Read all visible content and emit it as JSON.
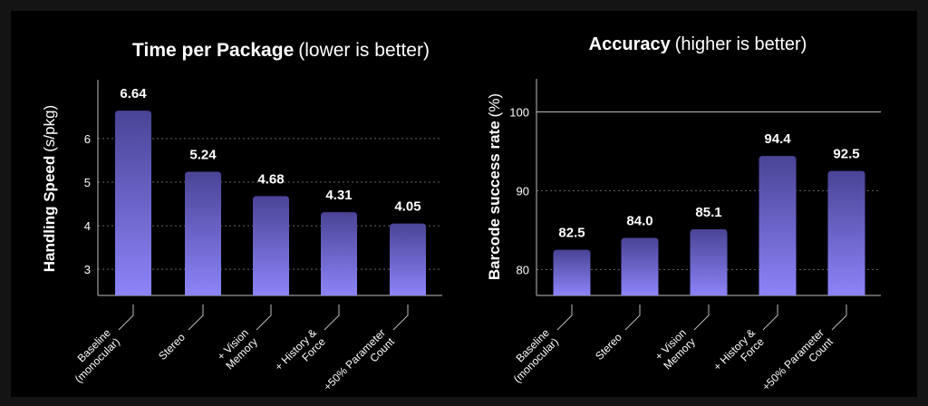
{
  "chart_data": [
    {
      "type": "bar",
      "title": "Time per Package",
      "subtitle": "(lower is better)",
      "ylabel_bold": "Handling Speed",
      "ylabel_unit": "(s/pkg)",
      "categories": [
        [
          "Baseline",
          "(monocular)"
        ],
        [
          "Stereo"
        ],
        [
          "+ Vision",
          "Memory"
        ],
        [
          "+ History &",
          "Force"
        ],
        [
          "+50% Parameter",
          "Count"
        ]
      ],
      "values": [
        6.64,
        5.24,
        4.68,
        4.31,
        4.05
      ],
      "value_labels": [
        "6.64",
        "5.24",
        "4.68",
        "4.31",
        "4.05"
      ],
      "yticks": [
        "3",
        "4",
        "5",
        "6"
      ],
      "ylim": [
        2.4,
        7.35
      ],
      "grid": "dotted horizontal"
    },
    {
      "type": "bar",
      "title": "Accuracy",
      "subtitle": "(higher is better)",
      "ylabel_bold": "Barcode success rate",
      "ylabel_unit": "(%)",
      "categories": [
        [
          "Baseline",
          "(monocular)"
        ],
        [
          "Stereo"
        ],
        [
          "+ Vision",
          "Memory"
        ],
        [
          "+ History &",
          "Force"
        ],
        [
          "+50% Parameter",
          "Count"
        ]
      ],
      "values": [
        82.5,
        84.0,
        85.1,
        94.4,
        92.5
      ],
      "value_labels": [
        "82.5",
        "84.0",
        "85.1",
        "94.4",
        "92.5"
      ],
      "yticks": [
        "80",
        "90",
        "100"
      ],
      "ylim": [
        76.7,
        104.2
      ],
      "grid": "dotted horizontal, solid at 100"
    }
  ],
  "colors": {
    "background": "#000000",
    "bar_top": "#4a4496",
    "bar_bottom": "#8c84f8",
    "axis": "#bbbbbb",
    "grid": "#666666",
    "text": "#ffffff"
  }
}
